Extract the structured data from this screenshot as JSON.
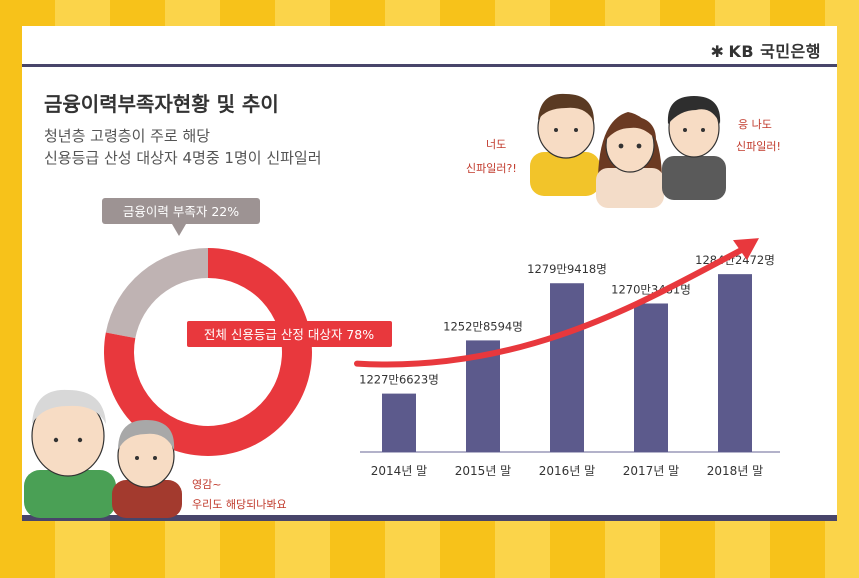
{
  "brand": {
    "name": "KB 국민은행",
    "accent": "#f7c21a",
    "dark": "#48456a"
  },
  "heading": {
    "title": "금융이력부족자현황 및 추이",
    "line1": "청년층 고령층이 주로 해당",
    "line2": "신용등급 산성 대상자 4명중 1명이 신파일러"
  },
  "speech": {
    "young_left": [
      "너도",
      "신파일러?!"
    ],
    "young_right": [
      "응 나도",
      "신파일러!"
    ],
    "elderly": [
      "영감~",
      "우리도 해당되나봐요"
    ]
  },
  "chart_data": [
    {
      "type": "pie",
      "donut": true,
      "slices": [
        {
          "label": "금융이력 부족자 22%",
          "value": 22,
          "color": "#bfb3b3"
        },
        {
          "label": "전체 신용등급 산정 대상자 78%",
          "value": 78,
          "color": "#e8383d"
        }
      ]
    },
    {
      "type": "bar",
      "categories": [
        "2014년 말",
        "2015년 말",
        "2016년 말",
        "2017년 말",
        "2018년 말"
      ],
      "values": [
        12276623,
        12528594,
        12799418,
        12703481,
        12842472
      ],
      "labels": [
        "1227만6623명",
        "1252만8594명",
        "1279만9418명",
        "1270만3481명",
        "1284만2472명"
      ],
      "bar_color": "#5c5a8c",
      "trend_color": "#e8383d",
      "ylim": [
        12000000,
        12900000
      ]
    }
  ]
}
